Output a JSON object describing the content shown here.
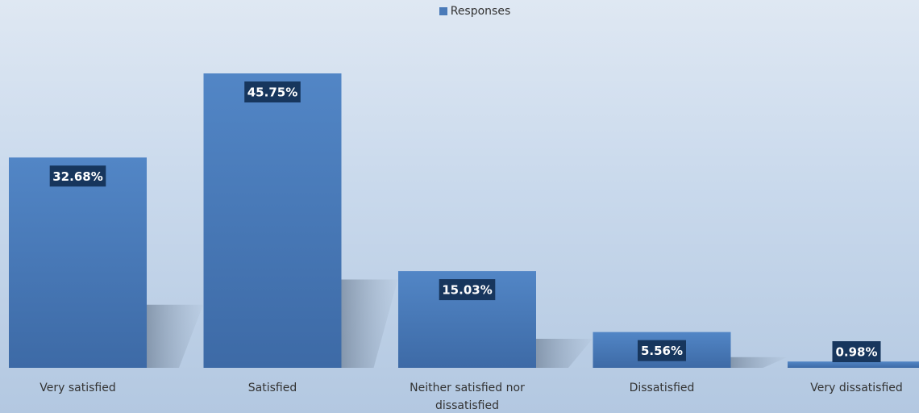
{
  "chart_data": {
    "type": "bar",
    "title": "",
    "xlabel": "",
    "ylabel": "",
    "ylim": [
      0,
      50
    ],
    "grid": false,
    "legend_position": "top-center",
    "categories": [
      "Very satisfied",
      "Satisfied",
      "Neither satisfied nor dissatisfied",
      "Dissatisfied",
      "Very dissatisfied"
    ],
    "category_lines": [
      [
        "Very satisfied"
      ],
      [
        "Satisfied"
      ],
      [
        "Neither satisfied nor",
        "dissatisfied"
      ],
      [
        "Dissatisfied"
      ],
      [
        "Very dissatisfied"
      ]
    ],
    "series": [
      {
        "name": "Responses",
        "values": [
          32.68,
          45.75,
          15.03,
          5.56,
          0.98
        ],
        "labels": [
          "32.68%",
          "45.75%",
          "15.03%",
          "5.56%",
          "0.98%"
        ]
      }
    ],
    "colors": {
      "bar_top": "#5286c6",
      "bar_bottom": "#3d6aa6",
      "label_bg": "#17365d",
      "label_text": "#ffffff",
      "shadow": "#7f8fa3"
    }
  }
}
